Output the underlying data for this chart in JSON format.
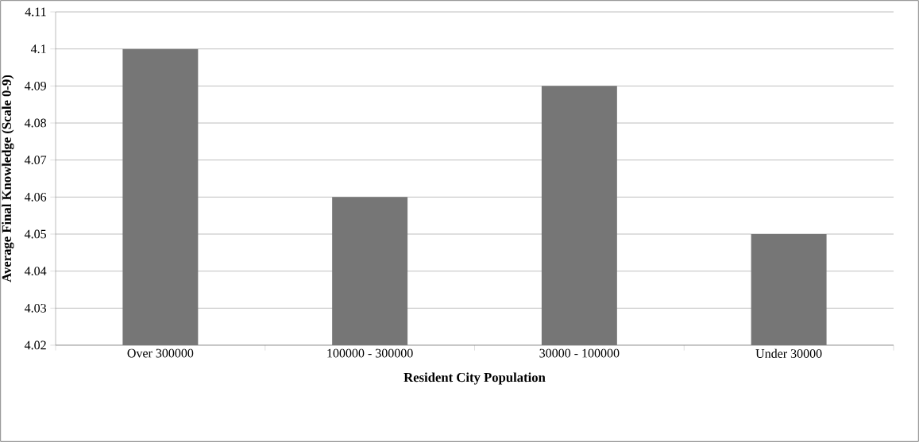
{
  "chart_data": {
    "type": "bar",
    "categories": [
      "Over 300000",
      "100000 - 300000",
      "30000 - 100000",
      "Under 30000"
    ],
    "values": [
      4.1,
      4.06,
      4.09,
      4.05
    ],
    "color": "#767676",
    "xlabel": "Resident City Population",
    "ylabel": "Average Final Knowledge (Scale 0-9)",
    "ylim": [
      4.02,
      4.11
    ],
    "yticks": [
      4.02,
      4.03,
      4.04,
      4.05,
      4.06,
      4.07,
      4.08,
      4.09,
      4.1,
      4.11
    ],
    "grid": "y"
  }
}
